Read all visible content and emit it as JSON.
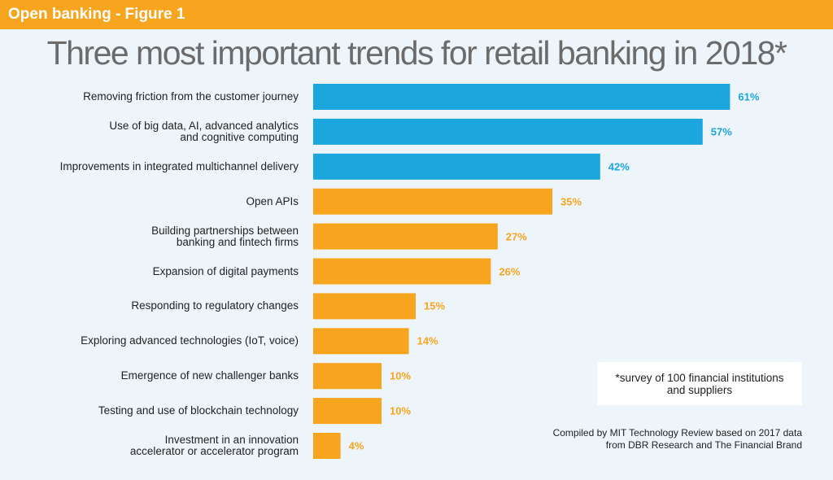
{
  "header": "Open banking - Figure 1",
  "chart_data": {
    "type": "barh",
    "title": "Three most important trends for retail banking in 2018*",
    "categories": [
      "Removing friction from the customer journey",
      "Use of big data, AI, advanced analytics\nand cognitive computing",
      "Improvements in integrated multichannel delivery",
      "Open APIs",
      "Building partnerships between\nbanking and fintech firms",
      "Expansion of digital payments",
      "Responding to regulatory changes",
      "Exploring advanced technologies (IoT, voice)",
      "Emergence of new challenger banks",
      "Testing and use of blockchain technology",
      "Investment in an innovation\naccelerator or accelerator program"
    ],
    "values": [
      61,
      57,
      42,
      35,
      27,
      26,
      15,
      14,
      10,
      10,
      4
    ],
    "value_labels": [
      "61%",
      "57%",
      "42%",
      "35%",
      "27%",
      "26%",
      "15%",
      "14%",
      "10%",
      "10%",
      "4%"
    ],
    "colors": [
      "#1ba6dd",
      "#1ba6dd",
      "#1ba6dd",
      "#f7a51e",
      "#f7a51e",
      "#f7a51e",
      "#f7a51e",
      "#f7a51e",
      "#f7a51e",
      "#f7a51e",
      "#f7a51e"
    ],
    "note": "*survey of 100 financial institutions\nand suppliers",
    "source": "Compiled by MIT Technology Review based on 2017 data\nfrom DBR Research and The Financial Brand"
  }
}
